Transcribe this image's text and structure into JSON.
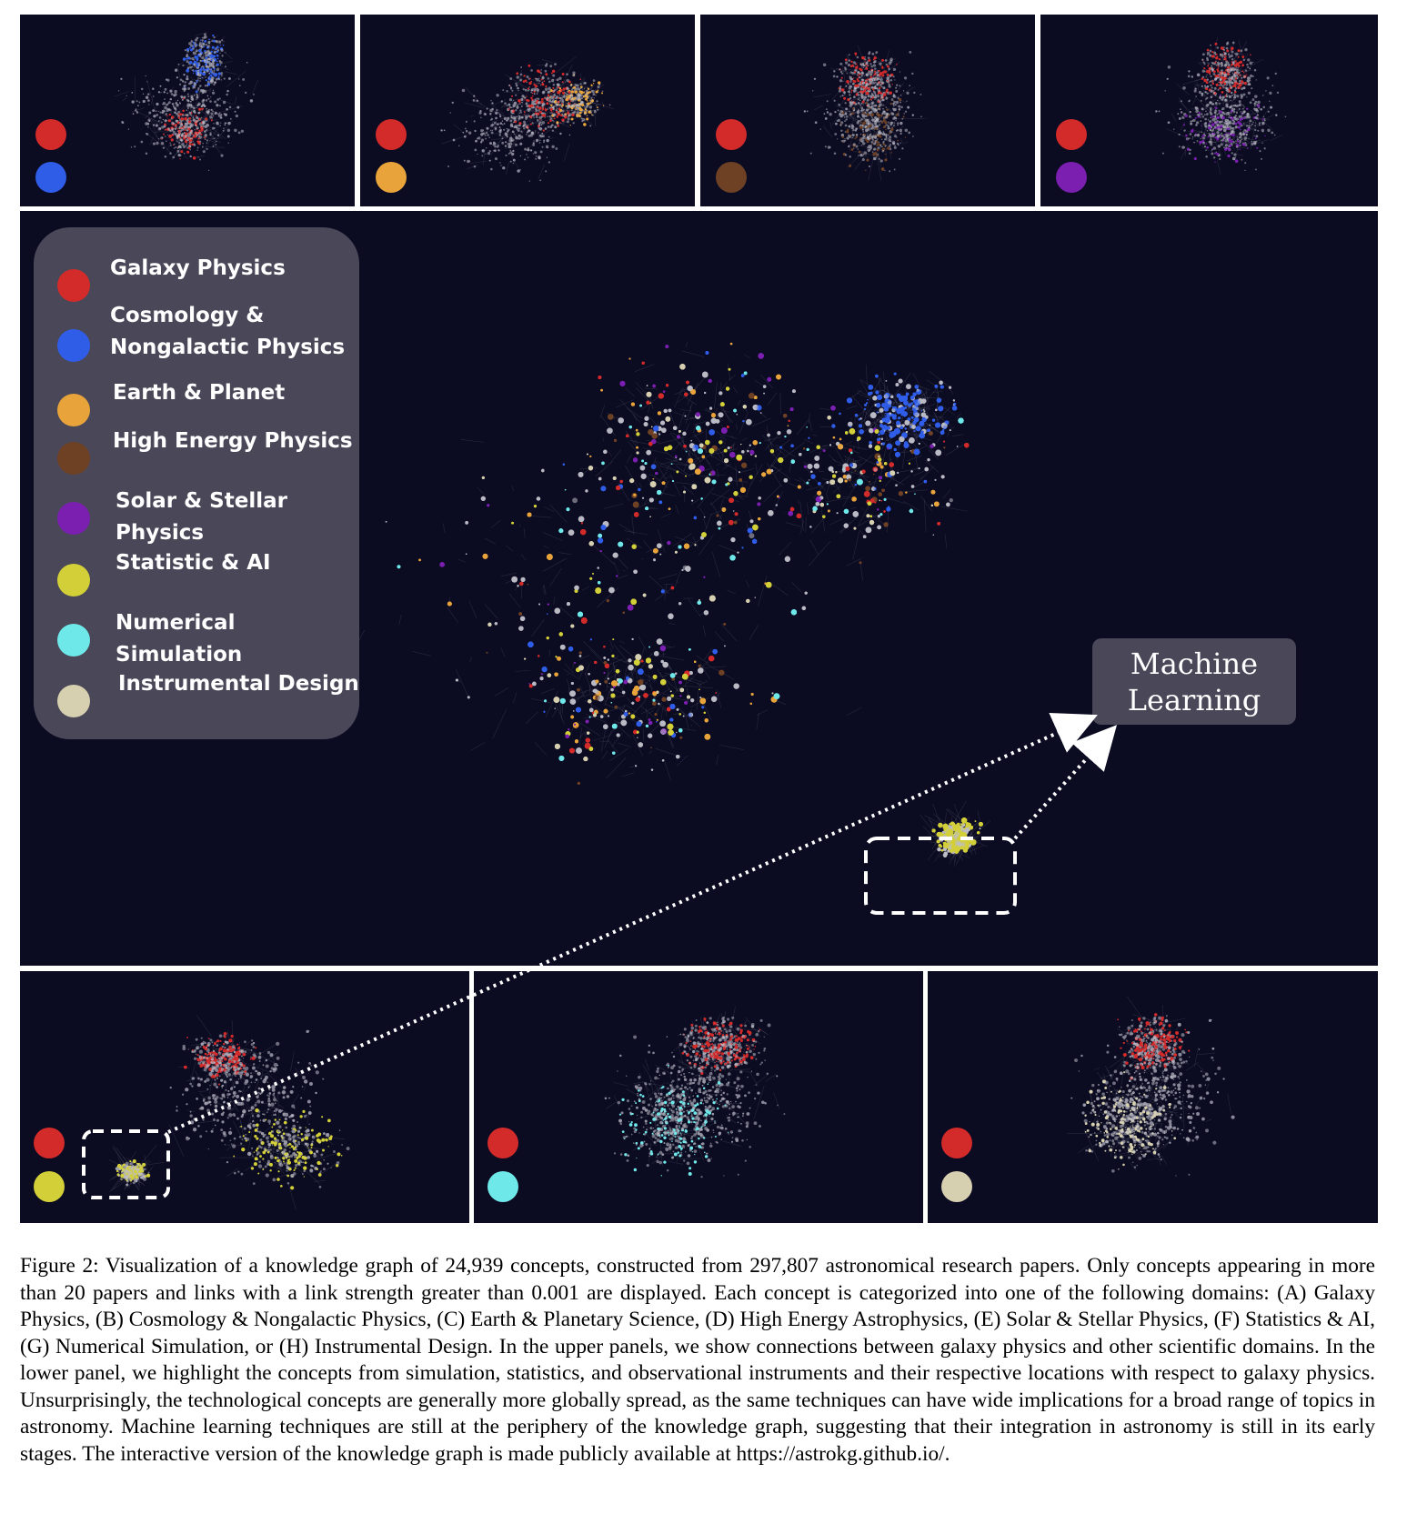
{
  "figure": {
    "legend": {
      "items": [
        {
          "label": "Galaxy Physics",
          "color": "#d32a2a"
        },
        {
          "label": "Cosmology &\nNongalactic Physics",
          "color": "#2f5de8"
        },
        {
          "label": "Earth & Planet",
          "color": "#e8a43a"
        },
        {
          "label": "High Energy Physics",
          "color": "#6e4124"
        },
        {
          "label": "Solar & Stellar Physics",
          "color": "#7a1fb0"
        },
        {
          "label": "Statistic & AI",
          "color": "#d2cf38"
        },
        {
          "label": "Numerical Simulation",
          "color": "#6fe8ea"
        },
        {
          "label": "Instrumental Design",
          "color": "#d7d0b0"
        }
      ]
    },
    "callout_label": "Machine\nLearning",
    "top_panels": [
      {
        "name": "galaxy-vs-cosmology",
        "colors": [
          "#d32a2a",
          "#2f5de8"
        ]
      },
      {
        "name": "galaxy-vs-earth",
        "colors": [
          "#d32a2a",
          "#e8a43a"
        ]
      },
      {
        "name": "galaxy-vs-high-energy",
        "colors": [
          "#d32a2a",
          "#6e4124"
        ]
      },
      {
        "name": "galaxy-vs-solar",
        "colors": [
          "#d32a2a",
          "#7a1fb0"
        ]
      }
    ],
    "bottom_panels": [
      {
        "name": "galaxy-vs-statistics",
        "colors": [
          "#d32a2a",
          "#d2cf38"
        ]
      },
      {
        "name": "galaxy-vs-simulation",
        "colors": [
          "#d32a2a",
          "#6fe8ea"
        ]
      },
      {
        "name": "galaxy-vs-instrumental",
        "colors": [
          "#d32a2a",
          "#d7d0b0"
        ]
      }
    ]
  },
  "caption": "Figure 2: Visualization of a knowledge graph of 24,939 concepts, constructed from 297,807 astronomical research papers. Only concepts appearing in more than 20 papers and links with a link strength greater than 0.001 are displayed. Each concept is categorized into one of the following domains: (A) Galaxy Physics, (B) Cosmology & Nongalactic Physics, (C) Earth & Planetary Science, (D) High Energy Astrophysics, (E) Solar & Stellar Physics, (F) Statistics & AI, (G) Numerical Simulation, or (H) Instrumental Design. In the upper panels, we show connections between galaxy physics and other scientific domains. In the lower panel, we highlight the concepts from simulation, statistics, and observational instruments and their respective locations with respect to galaxy physics. Unsurprisingly, the technological concepts are generally more globally spread, as the same techniques can have wide implications for a broad range of topics in astronomy. Machine learning techniques are still at the periphery of the knowledge graph, suggesting that their integration in astronomy is still in its early stages. The interactive version of the knowledge graph is made publicly available at https://astrokg.github.io/."
}
